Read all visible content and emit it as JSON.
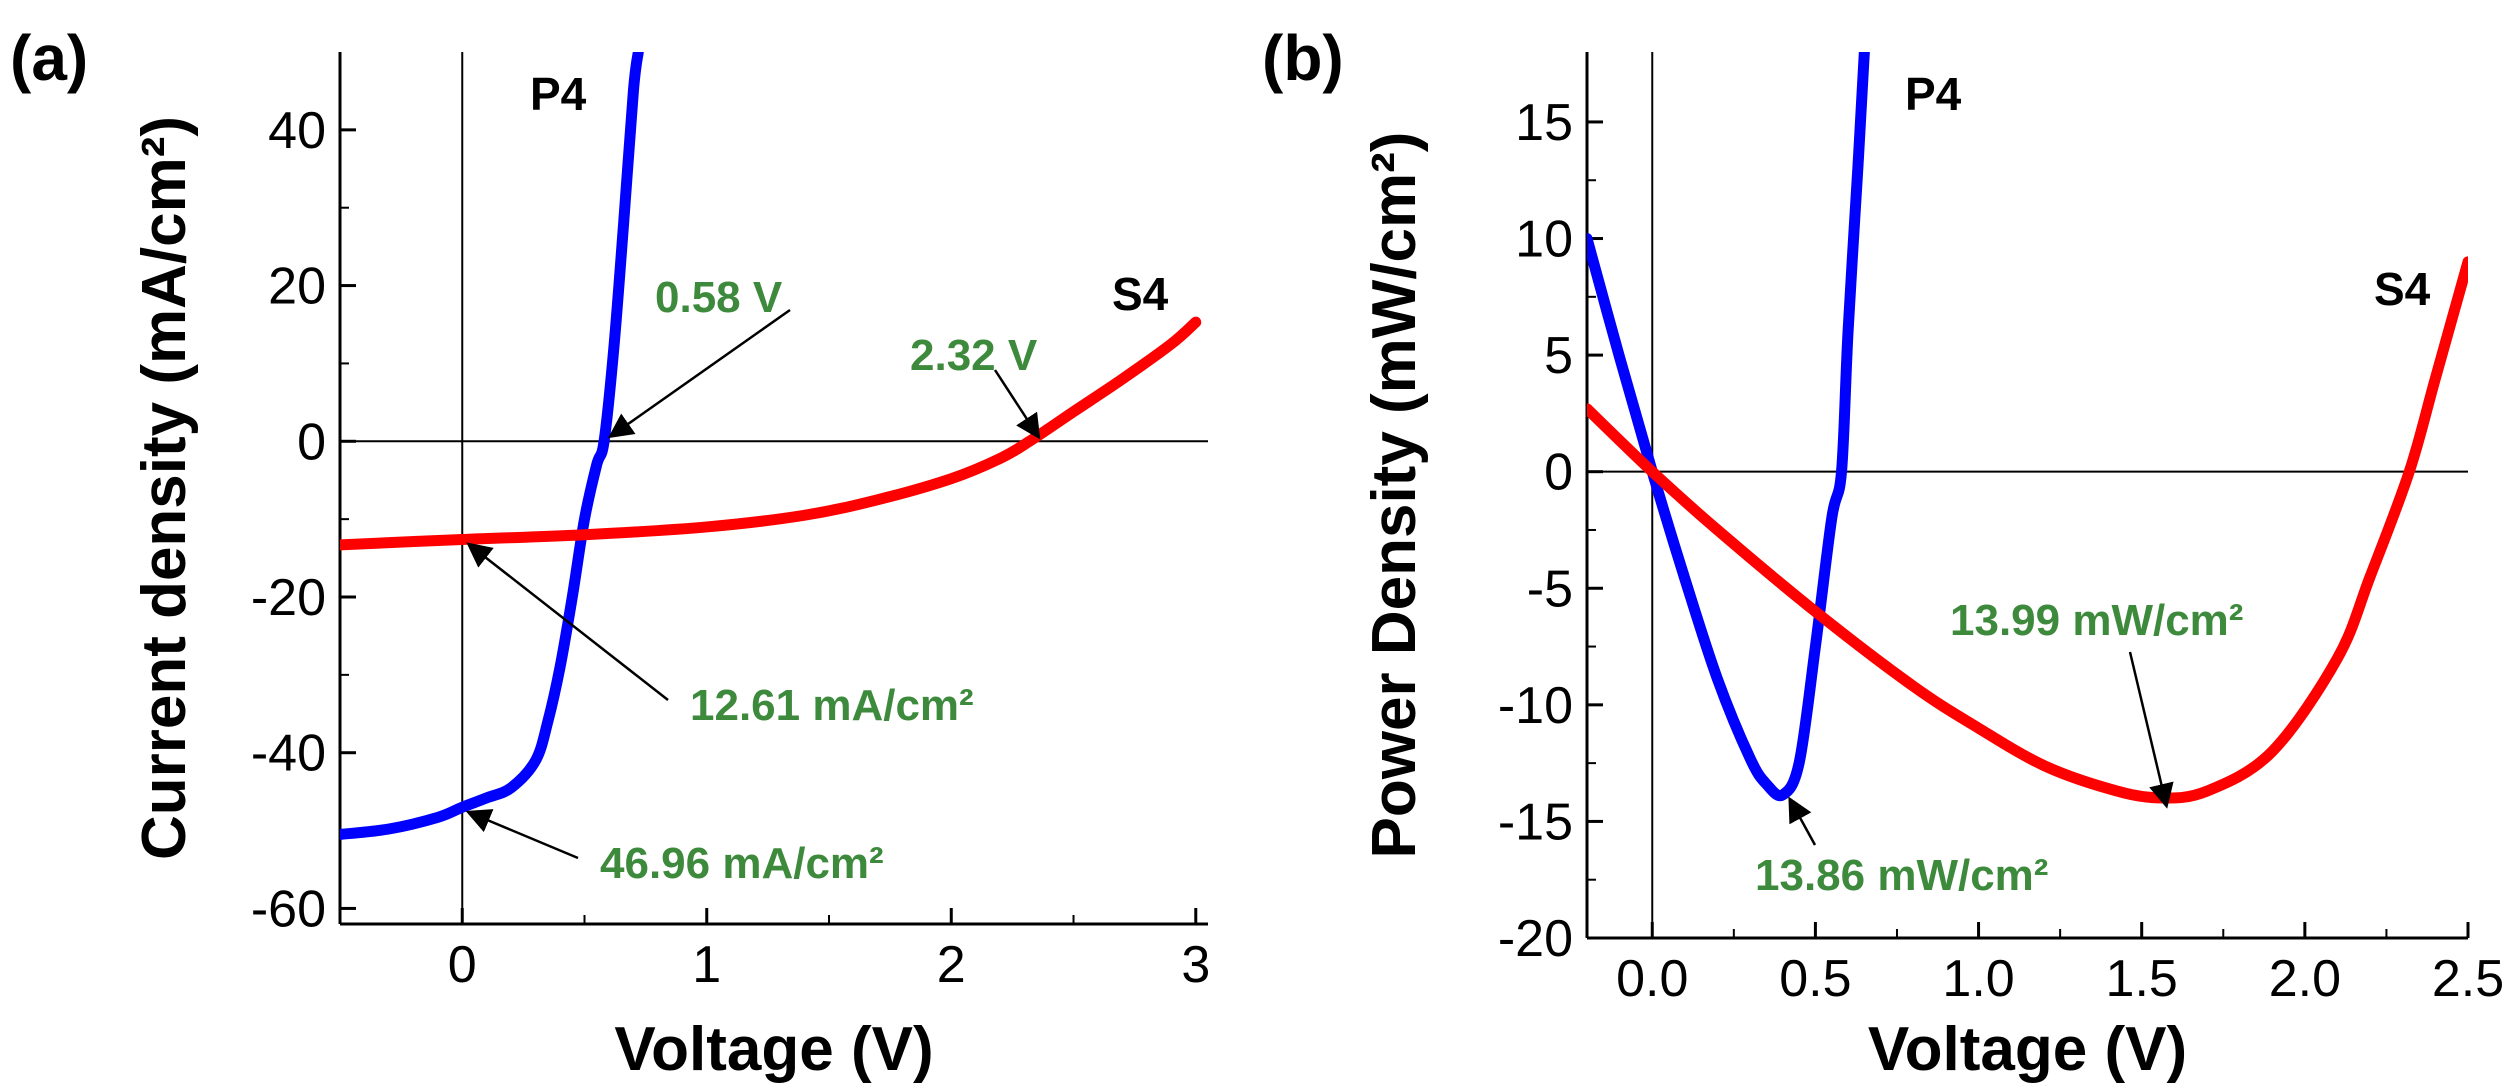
{
  "chart_data": [
    {
      "panel": "(a)",
      "type": "line",
      "xlabel": "Voltage (V)",
      "ylabel": "Current density (mA/cm²)",
      "xlim": [
        -0.5,
        3.05
      ],
      "ylim": [
        -62,
        50
      ],
      "xticks": [
        0,
        1,
        2,
        3
      ],
      "yticks": [
        -60,
        -40,
        -20,
        0,
        20,
        40
      ],
      "series": [
        {
          "name": "P4",
          "color": "#0000ff",
          "x": [
            -0.5,
            -0.3,
            -0.1,
            0.0,
            0.1,
            0.2,
            0.3,
            0.35,
            0.4,
            0.45,
            0.5,
            0.55,
            0.58,
            0.62,
            0.66,
            0.7,
            0.72
          ],
          "y": [
            -50.5,
            -49.8,
            -48.3,
            -47.0,
            -45.8,
            -44.5,
            -41.0,
            -36.0,
            -29.0,
            -20.0,
            -10.0,
            -3.0,
            0.0,
            12.0,
            28.0,
            45.0,
            50.0
          ]
        },
        {
          "name": "S4",
          "color": "#ff0000",
          "x": [
            -0.5,
            0.0,
            0.5,
            1.0,
            1.4,
            1.7,
            2.0,
            2.2,
            2.32,
            2.5,
            2.7,
            2.9,
            3.0
          ],
          "y": [
            -13.3,
            -12.61,
            -12.0,
            -11.0,
            -9.5,
            -7.5,
            -4.8,
            -2.2,
            0.0,
            3.8,
            8.0,
            12.5,
            15.3
          ]
        }
      ],
      "annotations": [
        {
          "text": "0.58 V",
          "x": 0.58,
          "y": 0
        },
        {
          "text": "2.32 V",
          "x": 2.32,
          "y": 0
        },
        {
          "text": "12.61 mA/cm²",
          "x": 0,
          "y": -12.61
        },
        {
          "text": "46.96 mA/cm²",
          "x": 0,
          "y": -46.96
        }
      ]
    },
    {
      "panel": "(b)",
      "type": "line",
      "xlabel": "Voltage (V)",
      "ylabel": "Power Density (mW/cm²)",
      "xlim": [
        -0.2,
        2.5
      ],
      "ylim": [
        -20,
        18
      ],
      "xticks": [
        0.0,
        0.5,
        1.0,
        1.5,
        2.0,
        2.5
      ],
      "yticks": [
        -20,
        -15,
        -10,
        -5,
        0,
        5,
        10,
        15
      ],
      "series": [
        {
          "name": "P4",
          "color": "#0000ff",
          "x": [
            -0.2,
            -0.1,
            0.0,
            0.1,
            0.2,
            0.3,
            0.35,
            0.4,
            0.45,
            0.5,
            0.55,
            0.58,
            0.6,
            0.63,
            0.65
          ],
          "y": [
            10.0,
            4.9,
            0.0,
            -4.6,
            -8.9,
            -12.3,
            -13.4,
            -13.86,
            -12.5,
            -7.5,
            -2.0,
            0.0,
            6.0,
            13.0,
            18.0
          ]
        },
        {
          "name": "S4",
          "color": "#ff0000",
          "x": [
            -0.2,
            0.0,
            0.2,
            0.5,
            0.8,
            1.0,
            1.2,
            1.4,
            1.55,
            1.7,
            1.9,
            2.1,
            2.2,
            2.32,
            2.4,
            2.5
          ],
          "y": [
            2.7,
            0.0,
            -2.5,
            -6.0,
            -9.2,
            -11.0,
            -12.6,
            -13.6,
            -13.99,
            -13.7,
            -12.0,
            -8.0,
            -4.5,
            0.0,
            4.0,
            9.0
          ]
        }
      ],
      "annotations": [
        {
          "text": "13.99 mW/cm²",
          "x": 1.55,
          "y": -13.99
        },
        {
          "text": "13.86 mW/cm²",
          "x": 0.4,
          "y": -13.86
        }
      ]
    }
  ]
}
